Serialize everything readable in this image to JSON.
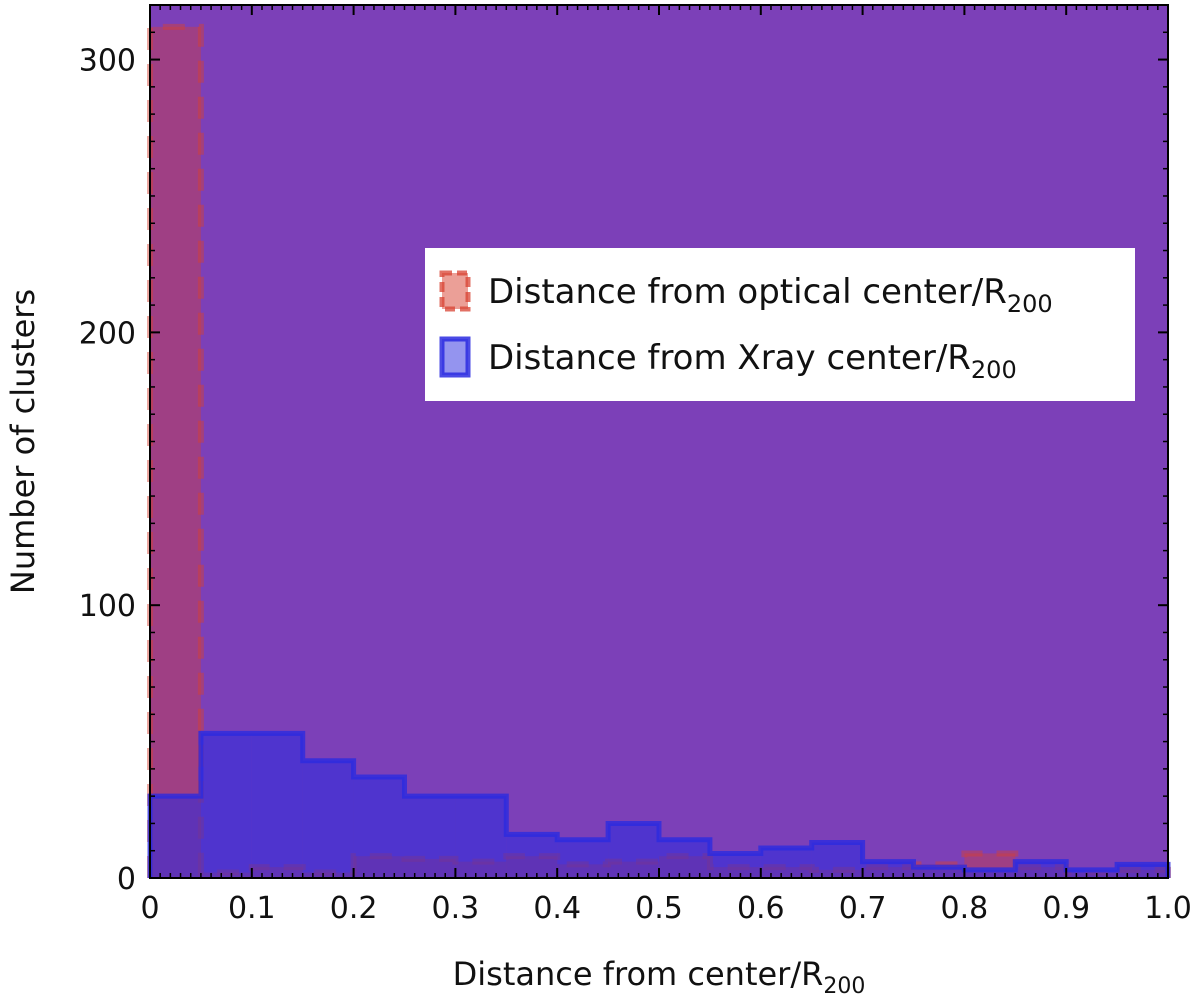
{
  "chart_data": {
    "type": "bar",
    "histogram": true,
    "bin_edges": [
      0,
      0.05,
      0.1,
      0.15,
      0.2,
      0.25,
      0.3,
      0.35,
      0.4,
      0.45,
      0.5,
      0.55,
      0.6,
      0.65,
      0.7,
      0.75,
      0.8,
      0.85,
      0.9,
      0.95,
      1.0
    ],
    "series": [
      {
        "name": "Distance from optical center/R200",
        "name_main": "Distance from optical center/R",
        "name_sub": "200",
        "color": "#d84030",
        "line_style": "dashed",
        "values": [
          312,
          2,
          4,
          2,
          8,
          7,
          6,
          8,
          5,
          6,
          8,
          4,
          4,
          3,
          4,
          5,
          9,
          4,
          2,
          3
        ]
      },
      {
        "name": "Distance from Xray center/R200",
        "name_main": "Distance from Xray center/R",
        "name_sub": "200",
        "color": "#2a2ae0",
        "line_style": "solid",
        "values": [
          30,
          53,
          53,
          43,
          37,
          30,
          30,
          16,
          14,
          20,
          14,
          9,
          11,
          13,
          6,
          4,
          3,
          6,
          3,
          5
        ]
      }
    ],
    "xlabel_main": "Distance from center/R",
    "xlabel_sub": "200",
    "ylabel": "Number of clusters",
    "xlim": [
      0,
      1.0
    ],
    "ylim": [
      0,
      320
    ],
    "xticks": [
      0,
      0.1,
      0.2,
      0.3,
      0.4,
      0.5,
      0.6,
      0.7,
      0.8,
      0.9,
      1.0
    ],
    "xtick_labels": [
      "0",
      "0.1",
      "0.2",
      "0.3",
      "0.4",
      "0.5",
      "0.6",
      "0.7",
      "0.8",
      "0.9",
      "1.0"
    ],
    "yticks": [
      0,
      100,
      200,
      300
    ],
    "ytick_labels": [
      "0",
      "100",
      "200",
      "300"
    ],
    "plot_background": "#7c40b8",
    "legend_placement": "center-right",
    "grid": false
  }
}
